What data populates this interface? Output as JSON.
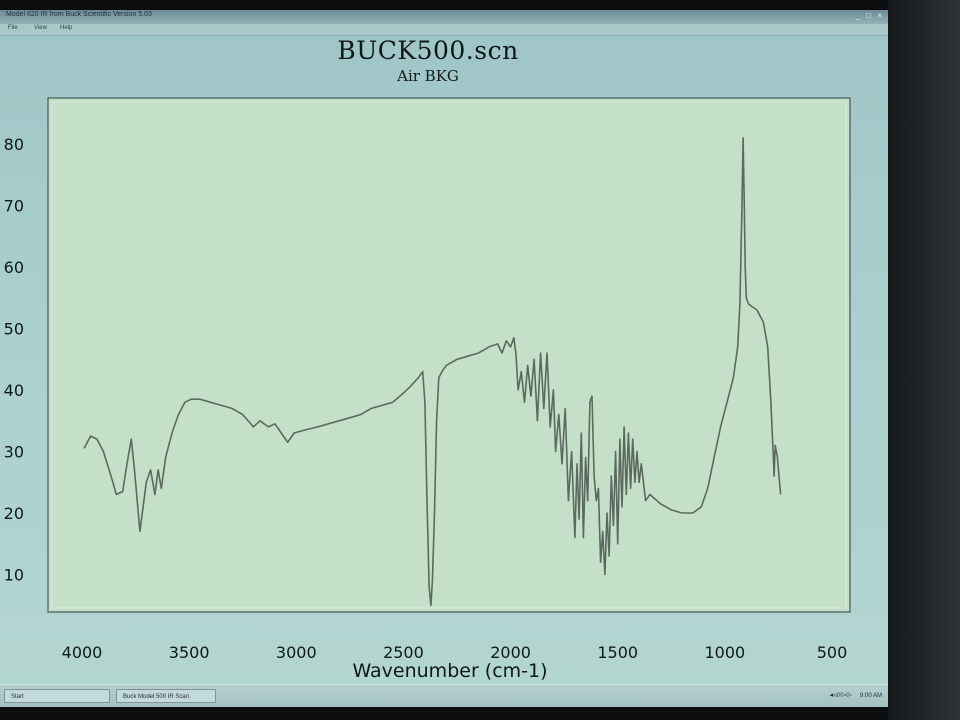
{
  "window": {
    "title": "Model 620 IR from Buck Scientific Version 5.03",
    "controls": "_ □ ×"
  },
  "menu": [
    "File",
    "View",
    "Help"
  ],
  "chart_data": {
    "type": "line",
    "title": "BUCK500.scn",
    "subtitle": "Air BKG",
    "xlabel": "Wavenumber (cm-1)",
    "ylabel": "",
    "xlim": [
      4000,
      500
    ],
    "ylim": [
      0,
      85
    ],
    "x_reversed": true,
    "x_ticks": [
      4000,
      3500,
      3000,
      2500,
      2000,
      1500,
      1000,
      500
    ],
    "y_ticks": [
      10,
      20,
      30,
      40,
      50,
      60,
      70,
      80
    ],
    "grid": false,
    "line_color": "#5b6a60",
    "series": [
      {
        "values": [
          [
            3990,
            30.5
          ],
          [
            3960,
            32.5
          ],
          [
            3930,
            32
          ],
          [
            3900,
            30
          ],
          [
            3860,
            25.5
          ],
          [
            3840,
            23
          ],
          [
            3810,
            23.5
          ],
          [
            3790,
            28
          ],
          [
            3770,
            32
          ],
          [
            3755,
            27
          ],
          [
            3730,
            17
          ],
          [
            3715,
            21
          ],
          [
            3700,
            25
          ],
          [
            3680,
            27
          ],
          [
            3660,
            23
          ],
          [
            3645,
            27
          ],
          [
            3630,
            24
          ],
          [
            3610,
            29
          ],
          [
            3580,
            33
          ],
          [
            3550,
            36
          ],
          [
            3520,
            38
          ],
          [
            3490,
            38.5
          ],
          [
            3450,
            38.5
          ],
          [
            3400,
            38
          ],
          [
            3350,
            37.5
          ],
          [
            3300,
            37
          ],
          [
            3250,
            36
          ],
          [
            3200,
            34
          ],
          [
            3170,
            35
          ],
          [
            3130,
            34
          ],
          [
            3100,
            34.5
          ],
          [
            3070,
            33
          ],
          [
            3040,
            31.5
          ],
          [
            3010,
            33
          ],
          [
            2960,
            33.5
          ],
          [
            2900,
            34
          ],
          [
            2850,
            34.5
          ],
          [
            2800,
            35
          ],
          [
            2750,
            35.5
          ],
          [
            2700,
            36
          ],
          [
            2650,
            37
          ],
          [
            2600,
            37.5
          ],
          [
            2550,
            38
          ],
          [
            2500,
            39.5
          ],
          [
            2470,
            40.5
          ],
          [
            2430,
            42
          ],
          [
            2410,
            43
          ],
          [
            2400,
            38
          ],
          [
            2390,
            22
          ],
          [
            2380,
            8
          ],
          [
            2372,
            5
          ],
          [
            2365,
            9
          ],
          [
            2355,
            20
          ],
          [
            2345,
            35
          ],
          [
            2335,
            42
          ],
          [
            2320,
            43
          ],
          [
            2300,
            44
          ],
          [
            2250,
            45
          ],
          [
            2200,
            45.5
          ],
          [
            2150,
            46
          ],
          [
            2100,
            47
          ],
          [
            2060,
            47.5
          ],
          [
            2040,
            46
          ],
          [
            2020,
            48
          ],
          [
            2000,
            47
          ],
          [
            1985,
            48.5
          ],
          [
            1975,
            46
          ],
          [
            1965,
            40
          ],
          [
            1950,
            43
          ],
          [
            1935,
            38
          ],
          [
            1920,
            44
          ],
          [
            1905,
            39
          ],
          [
            1890,
            45
          ],
          [
            1875,
            35
          ],
          [
            1860,
            46
          ],
          [
            1845,
            37
          ],
          [
            1830,
            46
          ],
          [
            1815,
            34
          ],
          [
            1800,
            40
          ],
          [
            1790,
            30
          ],
          [
            1775,
            36
          ],
          [
            1760,
            28
          ],
          [
            1745,
            37
          ],
          [
            1730,
            22
          ],
          [
            1715,
            30
          ],
          [
            1700,
            16
          ],
          [
            1690,
            28
          ],
          [
            1680,
            19
          ],
          [
            1670,
            33
          ],
          [
            1660,
            16
          ],
          [
            1650,
            29
          ],
          [
            1640,
            22
          ],
          [
            1630,
            38
          ],
          [
            1620,
            39
          ],
          [
            1610,
            26
          ],
          [
            1600,
            22
          ],
          [
            1590,
            24
          ],
          [
            1580,
            12
          ],
          [
            1570,
            17
          ],
          [
            1560,
            10
          ],
          [
            1550,
            20
          ],
          [
            1540,
            13
          ],
          [
            1530,
            26
          ],
          [
            1520,
            18
          ],
          [
            1510,
            30
          ],
          [
            1500,
            15
          ],
          [
            1490,
            32
          ],
          [
            1480,
            21
          ],
          [
            1470,
            34
          ],
          [
            1460,
            23
          ],
          [
            1450,
            33
          ],
          [
            1440,
            24
          ],
          [
            1430,
            32
          ],
          [
            1420,
            25
          ],
          [
            1410,
            30
          ],
          [
            1400,
            25
          ],
          [
            1390,
            28
          ],
          [
            1370,
            22
          ],
          [
            1350,
            23
          ],
          [
            1300,
            21.5
          ],
          [
            1250,
            20.5
          ],
          [
            1200,
            20
          ],
          [
            1150,
            20
          ],
          [
            1110,
            21
          ],
          [
            1080,
            24
          ],
          [
            1050,
            29
          ],
          [
            1020,
            34
          ],
          [
            990,
            38
          ],
          [
            960,
            42
          ],
          [
            940,
            47
          ],
          [
            930,
            54
          ],
          [
            920,
            70
          ],
          [
            915,
            81
          ],
          [
            910,
            72
          ],
          [
            905,
            60
          ],
          [
            900,
            55
          ],
          [
            890,
            54
          ],
          [
            870,
            53.5
          ],
          [
            850,
            53
          ],
          [
            820,
            51
          ],
          [
            800,
            47
          ],
          [
            785,
            38
          ],
          [
            775,
            30
          ],
          [
            770,
            26
          ],
          [
            765,
            31
          ],
          [
            755,
            29
          ],
          [
            740,
            23
          ]
        ]
      }
    ]
  },
  "taskbar": {
    "start_label": "Start",
    "task_label": "Buck Model 500 IR Scan",
    "tray_icons": "◂◃◊◊▫◊◦",
    "clock": "9:00 AM"
  }
}
